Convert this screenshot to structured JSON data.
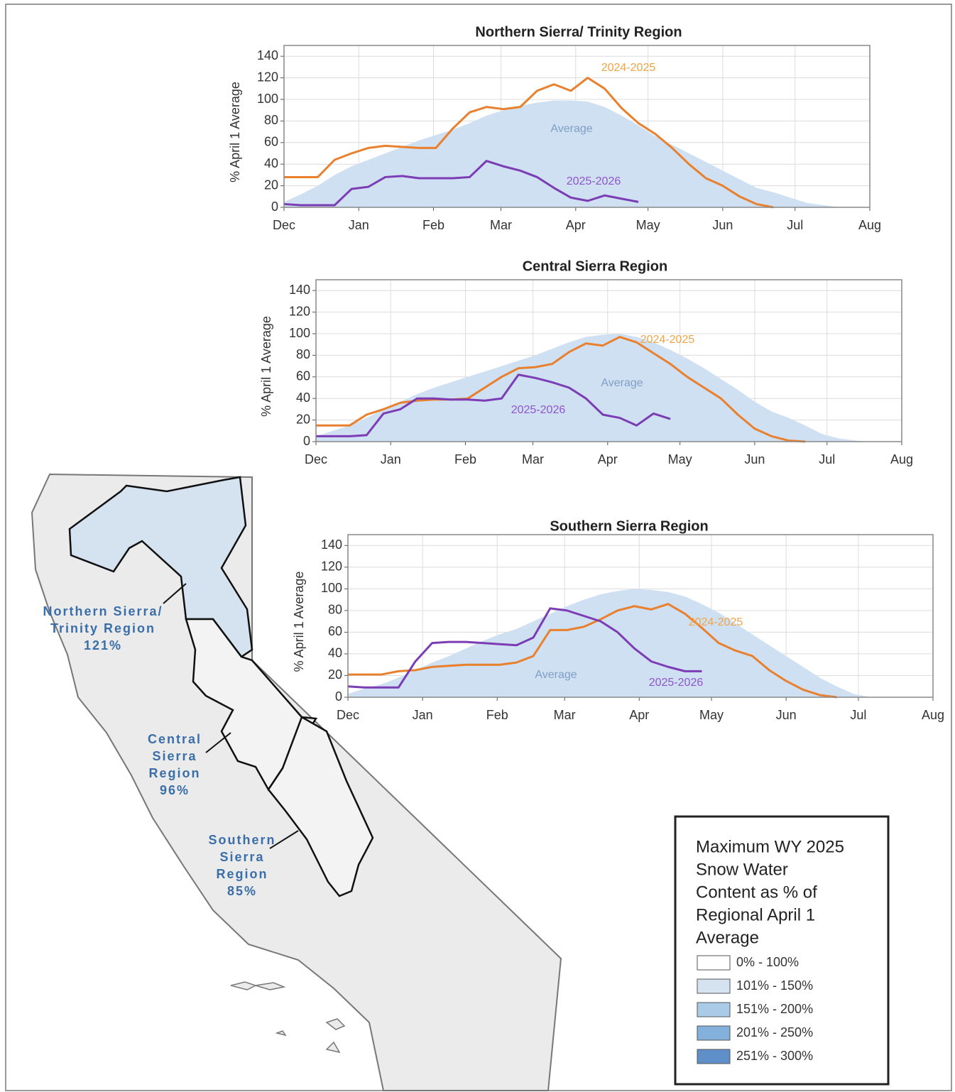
{
  "chart_data": [
    {
      "type": "line",
      "title": "Northern Sierra/ Trinity Region",
      "y_label": "% April 1 Average",
      "x": [
        0,
        7,
        14,
        21,
        28,
        35,
        42,
        49,
        56,
        63,
        70,
        77,
        84,
        91,
        98,
        105,
        112,
        119,
        126,
        133,
        140,
        147,
        154,
        161,
        168,
        175,
        182,
        189,
        196,
        203,
        210,
        217,
        224,
        231,
        238
      ],
      "xlim": [
        0,
        243
      ],
      "xticks": [
        {
          "value": 0,
          "label": "Dec"
        },
        {
          "value": 31,
          "label": "Jan"
        },
        {
          "value": 62,
          "label": "Feb"
        },
        {
          "value": 90,
          "label": "Mar"
        },
        {
          "value": 121,
          "label": "Apr"
        },
        {
          "value": 151,
          "label": "May"
        },
        {
          "value": 182,
          "label": "Jun"
        },
        {
          "value": 212,
          "label": "Jul"
        },
        {
          "value": 243,
          "label": "Aug"
        }
      ],
      "ylim": [
        0,
        150
      ],
      "yticks": [
        0,
        20,
        40,
        60,
        80,
        100,
        120,
        140
      ],
      "grid": true,
      "series": [
        {
          "name": "Average",
          "type": "area",
          "color": "#cfe0f3",
          "label_color": "#7f9fc4",
          "values": [
            5,
            12,
            20,
            30,
            38,
            44,
            50,
            56,
            62,
            67,
            72,
            78,
            85,
            90,
            94,
            97,
            99,
            99,
            98,
            93,
            85,
            76,
            66,
            58,
            50,
            42,
            34,
            26,
            18,
            14,
            9,
            4,
            2,
            0,
            0
          ]
        },
        {
          "name": "2024-2025",
          "color": "#e8802e",
          "label_color": "#f0a445",
          "values": [
            28,
            28,
            28,
            44,
            50,
            55,
            57,
            56,
            55,
            55,
            73,
            88,
            93,
            91,
            93,
            108,
            114,
            108,
            120,
            110,
            92,
            78,
            68,
            55,
            40,
            27,
            20,
            10,
            3,
            0,
            null,
            null,
            null,
            null,
            null
          ]
        },
        {
          "name": "2025-2026",
          "color": "#7b3cb4",
          "label_color": "#8f55cc",
          "values": [
            3,
            2,
            2,
            2,
            17,
            19,
            28,
            29,
            27,
            27,
            27,
            28,
            43,
            38,
            34,
            28,
            18,
            9,
            6,
            11,
            8,
            5,
            null,
            null,
            null,
            null,
            null,
            null,
            null,
            null,
            null,
            null,
            null,
            null,
            null
          ]
        }
      ]
    },
    {
      "type": "line",
      "title": "Central Sierra Region",
      "y_label": "% April 1 Average",
      "x": [
        0,
        7,
        14,
        21,
        28,
        35,
        42,
        49,
        56,
        63,
        70,
        77,
        84,
        91,
        98,
        105,
        112,
        119,
        126,
        133,
        140,
        147,
        154,
        161,
        168,
        175,
        182,
        189,
        196,
        203,
        210,
        217,
        224,
        231,
        238
      ],
      "xlim": [
        0,
        243
      ],
      "xticks": [
        {
          "value": 0,
          "label": "Dec"
        },
        {
          "value": 31,
          "label": "Jan"
        },
        {
          "value": 62,
          "label": "Feb"
        },
        {
          "value": 90,
          "label": "Mar"
        },
        {
          "value": 121,
          "label": "Apr"
        },
        {
          "value": 151,
          "label": "May"
        },
        {
          "value": 182,
          "label": "Jun"
        },
        {
          "value": 212,
          "label": "Jul"
        },
        {
          "value": 243,
          "label": "Aug"
        }
      ],
      "ylim": [
        0,
        150
      ],
      "yticks": [
        0,
        20,
        40,
        60,
        80,
        100,
        120,
        140
      ],
      "grid": true,
      "series": [
        {
          "name": "Average",
          "type": "area",
          "color": "#cfe0f3",
          "label_color": "#7f9fc4",
          "values": [
            5,
            10,
            15,
            22,
            30,
            37,
            44,
            50,
            55,
            60,
            65,
            70,
            75,
            80,
            86,
            92,
            97,
            99,
            100,
            97,
            92,
            85,
            77,
            68,
            58,
            48,
            37,
            28,
            22,
            15,
            7,
            3,
            1,
            0,
            0
          ]
        },
        {
          "name": "2024-2025",
          "color": "#e8802e",
          "label_color": "#f0a445",
          "values": [
            15,
            15,
            15,
            25,
            30,
            36,
            38,
            39,
            39,
            40,
            50,
            60,
            68,
            69,
            72,
            83,
            91,
            89,
            97,
            92,
            82,
            72,
            60,
            50,
            40,
            25,
            12,
            5,
            1,
            0,
            null,
            null,
            null,
            null,
            null
          ]
        },
        {
          "name": "2025-2026",
          "color": "#7b3cb4",
          "label_color": "#8f55cc",
          "values": [
            5,
            5,
            5,
            6,
            26,
            30,
            40,
            40,
            39,
            39,
            38,
            40,
            62,
            59,
            55,
            50,
            40,
            25,
            22,
            15,
            26,
            21,
            null,
            null,
            null,
            null,
            null,
            null,
            null,
            null,
            null,
            null,
            null,
            null,
            null
          ]
        }
      ]
    },
    {
      "type": "line",
      "title": "Southern Sierra Region",
      "y_label": "% April 1 Average",
      "x": [
        0,
        7,
        14,
        21,
        28,
        35,
        42,
        49,
        56,
        63,
        70,
        77,
        84,
        91,
        98,
        105,
        112,
        119,
        126,
        133,
        140,
        147,
        154,
        161,
        168,
        175,
        182,
        189,
        196,
        203,
        210,
        217,
        224,
        231,
        238
      ],
      "xlim": [
        0,
        243
      ],
      "xticks": [
        {
          "value": 0,
          "label": "Dec"
        },
        {
          "value": 31,
          "label": "Jan"
        },
        {
          "value": 62,
          "label": "Feb"
        },
        {
          "value": 90,
          "label": "Mar"
        },
        {
          "value": 121,
          "label": "Apr"
        },
        {
          "value": 151,
          "label": "May"
        },
        {
          "value": 182,
          "label": "Jun"
        },
        {
          "value": 212,
          "label": "Jul"
        },
        {
          "value": 243,
          "label": "Aug"
        }
      ],
      "ylim": [
        0,
        150
      ],
      "yticks": [
        0,
        20,
        40,
        60,
        80,
        100,
        120,
        140
      ],
      "grid": true,
      "series": [
        {
          "name": "Average",
          "type": "area",
          "color": "#cfe0f3",
          "label_color": "#7f9fc4",
          "values": [
            3,
            8,
            12,
            18,
            25,
            32,
            38,
            45,
            52,
            58,
            63,
            70,
            77,
            84,
            90,
            95,
            98,
            100,
            99,
            97,
            93,
            86,
            78,
            68,
            58,
            48,
            38,
            28,
            18,
            10,
            3,
            0,
            0,
            0,
            0
          ]
        },
        {
          "name": "2024-2025",
          "color": "#e8802e",
          "label_color": "#f0a445",
          "values": [
            21,
            21,
            21,
            24,
            25,
            28,
            29,
            30,
            30,
            30,
            32,
            38,
            62,
            62,
            65,
            72,
            80,
            84,
            81,
            86,
            77,
            64,
            50,
            43,
            38,
            25,
            15,
            7,
            2,
            0,
            null,
            null,
            null,
            null,
            null
          ]
        },
        {
          "name": "2025-2026",
          "color": "#7b3cb4",
          "label_color": "#8f55cc",
          "values": [
            10,
            9,
            9,
            9,
            33,
            50,
            51,
            51,
            50,
            49,
            48,
            55,
            82,
            80,
            75,
            70,
            60,
            45,
            33,
            28,
            24,
            24,
            null,
            null,
            null,
            null,
            null,
            null,
            null,
            null,
            null,
            null,
            null,
            null,
            null
          ]
        }
      ]
    }
  ],
  "map": {
    "label_color": "#3a6ea8",
    "labels": [
      {
        "lines": [
          "Northern Sierra/",
          "Trinity Region",
          "121%"
        ]
      },
      {
        "lines": [
          "Central",
          "Sierra",
          "Region",
          "96%"
        ]
      },
      {
        "lines": [
          "Southern",
          "Sierra",
          "Region",
          "85%"
        ]
      }
    ]
  },
  "legend": {
    "title_lines": [
      "Maximum WY 2025",
      "Snow Water",
      "Content as % of",
      "Regional April 1",
      "Average"
    ],
    "items": [
      {
        "label": "0% - 100%",
        "color": "#ffffff"
      },
      {
        "label": "101% - 150%",
        "color": "#d5e3f0"
      },
      {
        "label": "151% - 200%",
        "color": "#aacbe8"
      },
      {
        "label": "201% - 250%",
        "color": "#84b0dc"
      },
      {
        "label": "251% - 300%",
        "color": "#5f8fc9"
      }
    ]
  }
}
